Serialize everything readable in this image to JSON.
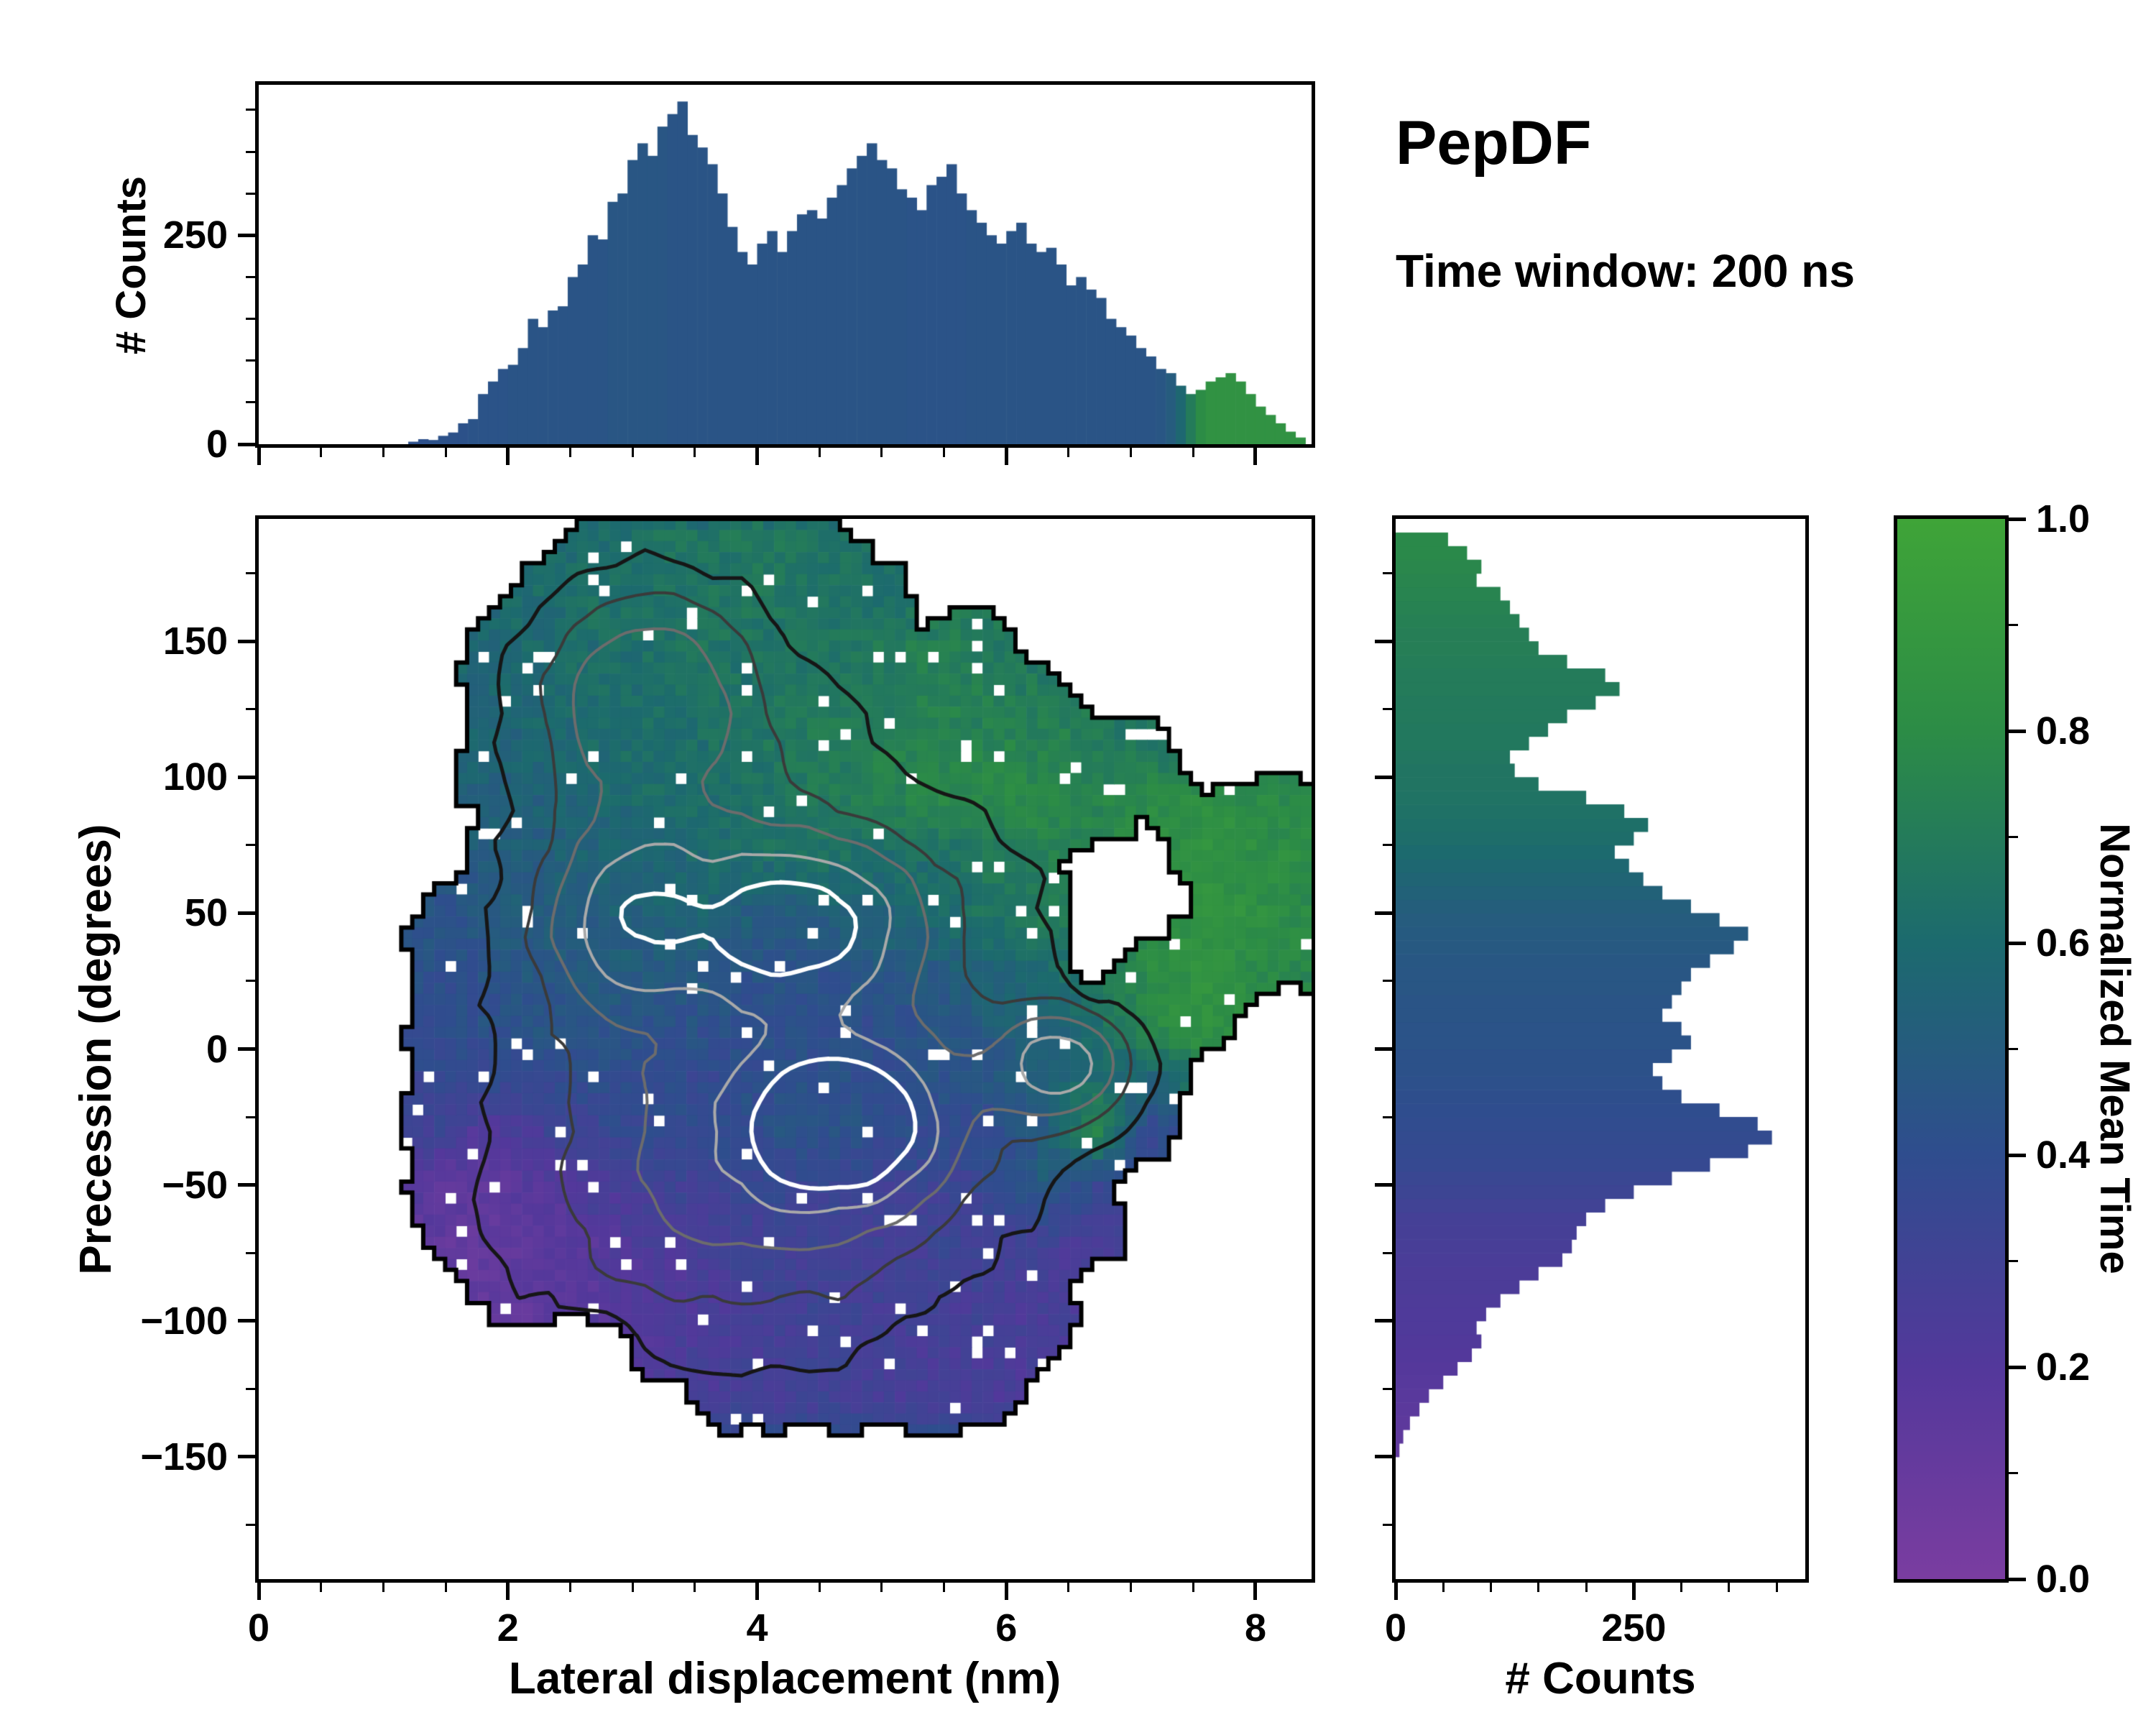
{
  "title": {
    "main": "PepDF",
    "subtitle": "Time window: 200 ns"
  },
  "colors": {
    "background": "#ffffff",
    "axis": "#000000",
    "colormap_stops": [
      [
        0,
        "#7a3da0"
      ],
      [
        0.2,
        "#53389b"
      ],
      [
        0.4,
        "#2f4d8e"
      ],
      [
        0.6,
        "#1c6a6e"
      ],
      [
        0.8,
        "#2c8c46"
      ],
      [
        1,
        "#3fa438"
      ]
    ]
  },
  "chart_data": [
    {
      "id": "top_histogram",
      "type": "bar",
      "orientation": "vertical",
      "ylabel": "# Counts",
      "xlim": [
        0,
        8.45
      ],
      "ylim": [
        0,
        430
      ],
      "yticks": [
        {
          "v": 0,
          "label": "0"
        },
        {
          "v": 250,
          "label": "250"
        }
      ],
      "y_minor_step": 50,
      "x_minor_step": 0.5,
      "bin_start": 1.2,
      "bin_width": 0.08,
      "counts": [
        3,
        6,
        5,
        10,
        14,
        25,
        30,
        60,
        75,
        90,
        95,
        115,
        150,
        140,
        160,
        165,
        200,
        215,
        250,
        245,
        290,
        300,
        340,
        360,
        345,
        380,
        395,
        410,
        370,
        355,
        335,
        300,
        260,
        230,
        215,
        240,
        255,
        230,
        255,
        275,
        280,
        270,
        295,
        310,
        330,
        345,
        360,
        340,
        330,
        305,
        295,
        280,
        310,
        320,
        335,
        300,
        280,
        265,
        250,
        240,
        255,
        265,
        240,
        230,
        235,
        215,
        190,
        200,
        185,
        175,
        150,
        140,
        130,
        115,
        105,
        90,
        85,
        70,
        60,
        65,
        75,
        80,
        85,
        75,
        60,
        45,
        35,
        25,
        15,
        8
      ],
      "mean_time": [
        0.42,
        0.42,
        0.43,
        0.43,
        0.43,
        0.43,
        0.44,
        0.44,
        0.44,
        0.44,
        0.45,
        0.45,
        0.45,
        0.45,
        0.45,
        0.45,
        0.45,
        0.45,
        0.45,
        0.45,
        0.46,
        0.46,
        0.46,
        0.46,
        0.46,
        0.46,
        0.45,
        0.45,
        0.45,
        0.45,
        0.45,
        0.45,
        0.45,
        0.45,
        0.45,
        0.45,
        0.45,
        0.45,
        0.45,
        0.45,
        0.45,
        0.45,
        0.45,
        0.45,
        0.45,
        0.45,
        0.45,
        0.45,
        0.45,
        0.45,
        0.44,
        0.44,
        0.44,
        0.44,
        0.44,
        0.44,
        0.45,
        0.45,
        0.45,
        0.45,
        0.45,
        0.45,
        0.45,
        0.45,
        0.45,
        0.45,
        0.45,
        0.45,
        0.45,
        0.45,
        0.45,
        0.45,
        0.45,
        0.45,
        0.45,
        0.46,
        0.5,
        0.58,
        0.7,
        0.8,
        0.85,
        0.85,
        0.85,
        0.85,
        0.85,
        0.85,
        0.85,
        0.85,
        0.85,
        0.85
      ]
    },
    {
      "id": "joint_heatmap",
      "type": "heatmap",
      "xlabel": "Lateral displacement (nm)",
      "ylabel": "Precession (degrees)",
      "value_label": "Normalized Mean Time",
      "xlim": [
        0,
        8.45
      ],
      "ylim": [
        -195,
        195
      ],
      "xticks": [
        {
          "v": 0,
          "label": "0"
        },
        {
          "v": 2,
          "label": "2"
        },
        {
          "v": 4,
          "label": "4"
        },
        {
          "v": 6,
          "label": "6"
        },
        {
          "v": 8,
          "label": "8"
        }
      ],
      "yticks": [
        {
          "v": 150,
          "label": "150"
        },
        {
          "v": 100,
          "label": "100"
        },
        {
          "v": 50,
          "label": "50"
        },
        {
          "v": 0,
          "label": "0"
        },
        {
          "v": -50,
          "label": "−50"
        },
        {
          "v": -100,
          "label": "−100"
        },
        {
          "v": -150,
          "label": "−150"
        }
      ],
      "x_minor_step": 0.5,
      "y_minor_step": 25,
      "grid": {
        "x0": 1.0,
        "dx": 0.44,
        "y0": 190,
        "dy": -20,
        "values": [
          [
            null,
            null,
            null,
            null,
            0.62,
            0.65,
            0.66,
            0.68,
            0.65,
            null,
            null,
            null,
            null,
            null,
            null,
            null,
            null,
            null
          ],
          [
            null,
            null,
            null,
            0.6,
            0.63,
            0.65,
            0.66,
            0.67,
            0.66,
            0.62,
            null,
            null,
            null,
            null,
            null,
            null,
            null,
            null
          ],
          [
            null,
            null,
            0.58,
            0.6,
            0.62,
            0.64,
            0.66,
            0.66,
            0.65,
            0.68,
            0.72,
            0.7,
            null,
            null,
            null,
            null,
            null,
            null
          ],
          [
            null,
            null,
            0.56,
            0.6,
            0.62,
            0.63,
            0.65,
            0.66,
            0.68,
            0.7,
            0.74,
            0.72,
            0.7,
            null,
            null,
            null,
            null,
            null
          ],
          [
            null,
            null,
            0.55,
            0.58,
            0.6,
            0.62,
            0.64,
            0.66,
            0.7,
            0.72,
            0.75,
            0.76,
            0.74,
            0.7,
            0.66,
            null,
            null,
            null
          ],
          [
            null,
            null,
            0.52,
            0.55,
            0.58,
            0.6,
            0.62,
            0.65,
            0.68,
            0.72,
            0.76,
            0.78,
            0.78,
            0.76,
            0.8,
            0.82,
            0.8,
            0.78
          ],
          [
            null,
            null,
            0.5,
            0.52,
            0.55,
            0.57,
            0.6,
            0.62,
            0.65,
            0.6,
            0.62,
            0.68,
            0.72,
            null,
            null,
            0.85,
            0.82,
            0.8
          ],
          [
            null,
            0.45,
            0.48,
            0.5,
            0.52,
            0.55,
            0.55,
            0.5,
            0.52,
            0.55,
            0.6,
            0.65,
            0.7,
            null,
            null,
            0.85,
            0.82,
            0.78
          ],
          [
            null,
            0.42,
            0.45,
            0.48,
            0.5,
            0.5,
            0.48,
            0.45,
            0.45,
            0.48,
            0.5,
            0.55,
            0.6,
            null,
            0.8,
            0.85,
            0.8,
            0.75
          ],
          [
            null,
            0.4,
            0.42,
            0.45,
            0.45,
            0.44,
            0.42,
            0.42,
            0.4,
            0.42,
            0.45,
            0.5,
            0.55,
            0.62,
            0.8,
            0.85,
            null,
            null
          ],
          [
            null,
            0.35,
            0.38,
            0.4,
            0.4,
            0.4,
            0.38,
            0.4,
            0.42,
            0.4,
            0.42,
            0.45,
            0.5,
            0.6,
            0.55,
            null,
            null,
            null
          ],
          [
            null,
            0.3,
            0.2,
            0.3,
            0.35,
            0.38,
            0.4,
            0.42,
            0.45,
            0.42,
            0.4,
            0.38,
            0.5,
            0.8,
            0.35,
            null,
            null,
            null
          ],
          [
            null,
            0.15,
            0.15,
            0.18,
            0.25,
            0.3,
            0.32,
            0.35,
            0.35,
            0.32,
            0.3,
            0.35,
            0.5,
            0.35,
            null,
            null,
            null,
            null
          ],
          [
            null,
            0.12,
            0.13,
            0.15,
            0.2,
            0.25,
            0.28,
            0.3,
            0.3,
            0.28,
            0.3,
            0.32,
            0.3,
            0.25,
            null,
            null,
            null,
            null
          ],
          [
            null,
            null,
            0.12,
            0.15,
            0.18,
            0.22,
            0.25,
            0.28,
            0.3,
            0.28,
            0.3,
            0.28,
            0.25,
            null,
            null,
            null,
            null,
            null
          ],
          [
            null,
            null,
            null,
            null,
            null,
            0.22,
            0.25,
            0.28,
            0.3,
            0.28,
            0.26,
            0.28,
            0.25,
            null,
            null,
            null,
            null,
            null
          ],
          [
            null,
            null,
            null,
            null,
            null,
            null,
            0.25,
            0.28,
            0.3,
            0.28,
            0.26,
            0.24,
            null,
            null,
            null,
            null,
            null,
            null
          ]
        ]
      },
      "contours": {
        "peaks": [
          {
            "x": 4.7,
            "y": -28,
            "sx": 0.8,
            "sy": 28,
            "a": 1.0
          },
          {
            "x": 4.35,
            "y": 47,
            "sx": 0.9,
            "sy": 30,
            "a": 0.85
          },
          {
            "x": 6.45,
            "y": -6,
            "sx": 0.55,
            "sy": 20,
            "a": 0.8
          },
          {
            "x": 3.1,
            "y": 132,
            "sx": 1.0,
            "sy": 45,
            "a": 0.75
          },
          {
            "x": 2.95,
            "y": 48,
            "sx": 0.7,
            "sy": 35,
            "a": 0.7
          },
          {
            "x": 4.3,
            "y": 10,
            "sx": 2.6,
            "sy": 120,
            "a": 0.6
          },
          {
            "x": 3.6,
            "y": -60,
            "sx": 1.8,
            "sy": 55,
            "a": 0.35
          }
        ],
        "levels": [
          0.3,
          0.5,
          0.7,
          0.95,
          1.2
        ],
        "colors": [
          "#161616",
          "#3a3a3a",
          "#6c6c6c",
          "#a9a9a9",
          "#ffffff"
        ],
        "widths": [
          5,
          4,
          4,
          4,
          6
        ]
      }
    },
    {
      "id": "right_histogram",
      "type": "bar",
      "orientation": "horizontal",
      "xlabel": "# Counts",
      "xlim": [
        0,
        430
      ],
      "ylim": [
        -195,
        195
      ],
      "xticks": [
        {
          "v": 0,
          "label": "0"
        },
        {
          "v": 250,
          "label": "250"
        }
      ],
      "x_minor_step": 50,
      "y_minor_step": 25,
      "bin_start": -150,
      "bin_width": 5,
      "counts": [
        4,
        8,
        15,
        25,
        35,
        50,
        65,
        80,
        90,
        85,
        95,
        110,
        130,
        150,
        175,
        185,
        190,
        200,
        220,
        250,
        290,
        330,
        370,
        395,
        380,
        340,
        300,
        280,
        270,
        290,
        310,
        300,
        280,
        290,
        300,
        310,
        330,
        355,
        370,
        340,
        310,
        280,
        260,
        245,
        230,
        250,
        265,
        240,
        200,
        150,
        125,
        120,
        140,
        160,
        180,
        210,
        235,
        220,
        180,
        150,
        140,
        130,
        120,
        110,
        85,
        90,
        75,
        55
      ],
      "mean_time": [
        0.13,
        0.14,
        0.15,
        0.16,
        0.17,
        0.18,
        0.19,
        0.2,
        0.21,
        0.22,
        0.22,
        0.23,
        0.24,
        0.24,
        0.25,
        0.26,
        0.27,
        0.28,
        0.3,
        0.32,
        0.34,
        0.36,
        0.37,
        0.38,
        0.39,
        0.4,
        0.41,
        0.42,
        0.43,
        0.43,
        0.44,
        0.44,
        0.45,
        0.45,
        0.46,
        0.46,
        0.47,
        0.48,
        0.49,
        0.5,
        0.52,
        0.54,
        0.56,
        0.58,
        0.6,
        0.62,
        0.63,
        0.64,
        0.65,
        0.66,
        0.66,
        0.67,
        0.68,
        0.68,
        0.69,
        0.69,
        0.7,
        0.7,
        0.71,
        0.72,
        0.72,
        0.73,
        0.74,
        0.75,
        0.76,
        0.77,
        0.78,
        0.78
      ]
    },
    {
      "id": "colorbar",
      "type": "colorbar",
      "label": "Normalized Mean Time",
      "lim": [
        0,
        1
      ],
      "ticks": [
        {
          "v": 1.0,
          "label": "1.0"
        },
        {
          "v": 0.8,
          "label": "0.8"
        },
        {
          "v": 0.6,
          "label": "0.6"
        },
        {
          "v": 0.4,
          "label": "0.4"
        },
        {
          "v": 0.2,
          "label": "0.2"
        },
        {
          "v": 0.0,
          "label": "0.0"
        }
      ],
      "minor_step": 0.1
    }
  ]
}
